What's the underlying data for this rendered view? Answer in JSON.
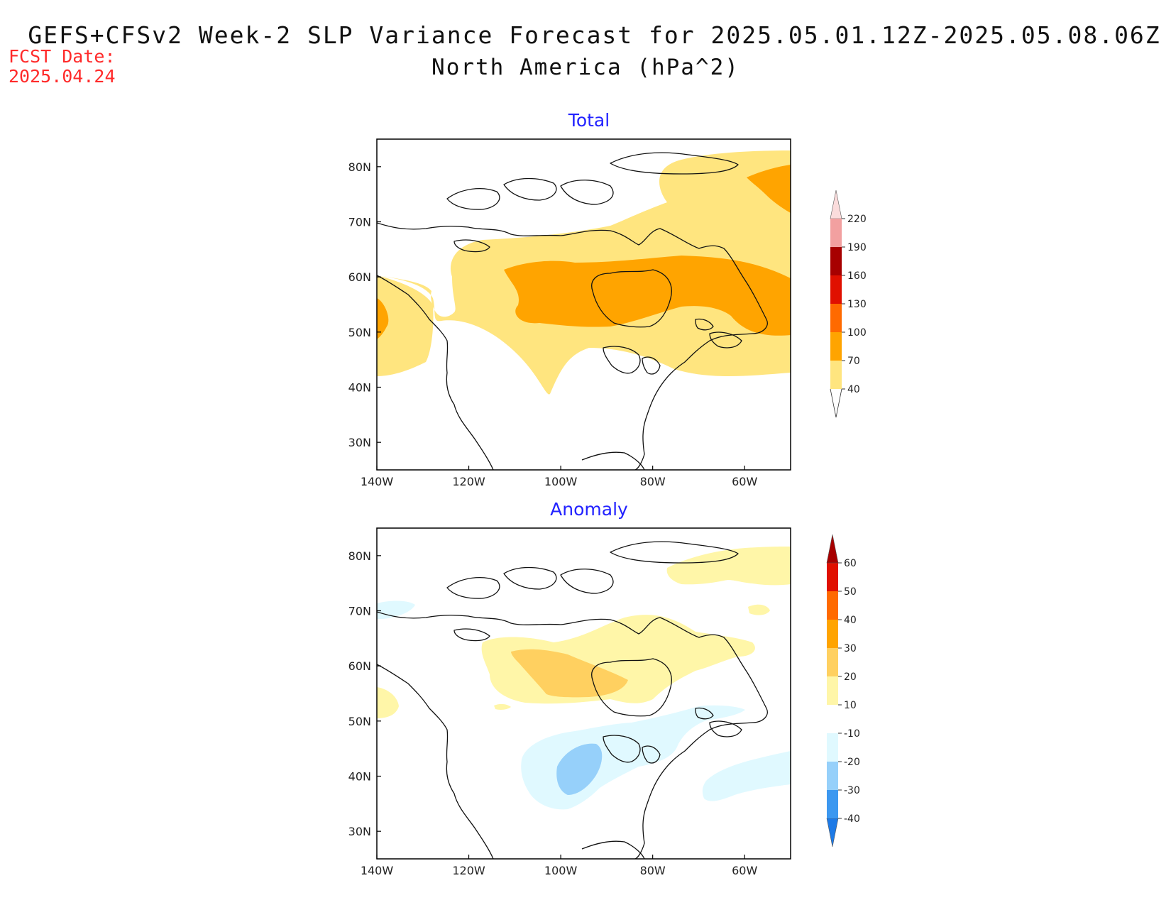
{
  "header": {
    "fcst_label": "FCST Date:",
    "fcst_date": "2025.04.24",
    "title": "GEFS+CFSv2 Week-2 SLP Variance Forecast for 2025.05.01.12Z-2025.05.08.06Z",
    "subtitle": "North America (hPa^2)"
  },
  "map": {
    "lon_range": [
      -140,
      -50
    ],
    "lat_range": [
      25,
      85
    ],
    "lon_ticks": [
      -140,
      -120,
      -100,
      -80,
      -60
    ],
    "lon_tick_labels": [
      "140W",
      "120W",
      "100W",
      "80W",
      "60W"
    ],
    "lat_ticks": [
      30,
      40,
      50,
      60,
      70,
      80
    ],
    "lat_tick_labels": [
      "30N",
      "40N",
      "50N",
      "60N",
      "70N",
      "80N"
    ]
  },
  "panels": [
    {
      "title": "Total",
      "colorbar": {
        "levels": [
          "40",
          "70",
          "100",
          "130",
          "160",
          "190",
          "220"
        ],
        "colors": [
          "#ffe57f",
          "#ffa400",
          "#ff6a00",
          "#e01000",
          "#a70000",
          "#f2a0a0",
          "#fbdcdc"
        ]
      }
    },
    {
      "title": "Anomaly",
      "colorbar": {
        "levels": [
          "-40",
          "-30",
          "-20",
          "-10",
          "10",
          "20",
          "30",
          "40",
          "50",
          "60"
        ],
        "colors": [
          "#1d7ae6",
          "#3c98f0",
          "#96d0fa",
          "#e0f9ff",
          "#ffffff",
          "#fff6a8",
          "#ffd060",
          "#ffa400",
          "#ff6a00",
          "#e01000",
          "#a70000"
        ]
      }
    }
  ]
}
